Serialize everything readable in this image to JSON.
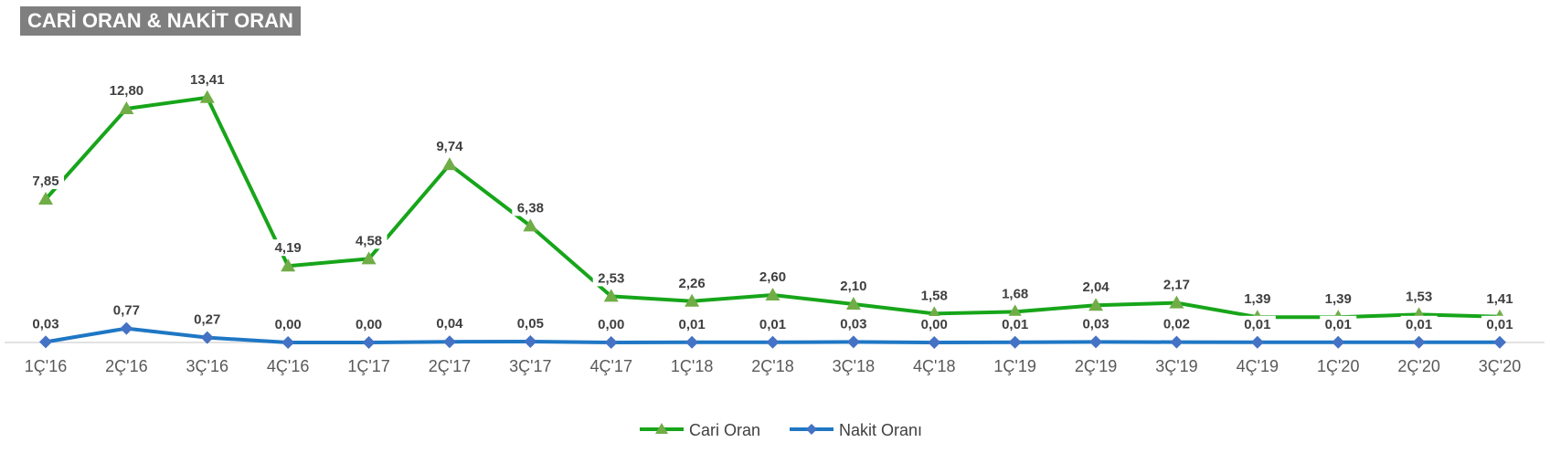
{
  "title": "CARİ ORAN & NAKİT ORAN",
  "chart_data": {
    "type": "line",
    "title": "CARİ ORAN & NAKİT ORAN",
    "categories": [
      "1Ç'16",
      "2Ç'16",
      "3Ç'16",
      "4Ç'16",
      "1Ç'17",
      "2Ç'17",
      "3Ç'17",
      "4Ç'17",
      "1Ç'18",
      "2Ç'18",
      "3Ç'18",
      "4Ç'18",
      "1Ç'19",
      "2Ç'19",
      "3Ç'19",
      "4Ç'19",
      "1Ç'20",
      "2Ç'20",
      "3Ç'20"
    ],
    "series": [
      {
        "name": "Cari Oran",
        "color": "#17a51a",
        "marker_color": "#70ad47",
        "marker": "triangle",
        "values": [
          7.85,
          12.8,
          13.41,
          4.19,
          4.58,
          9.74,
          6.38,
          2.53,
          2.26,
          2.6,
          2.1,
          1.58,
          1.68,
          2.04,
          2.17,
          1.39,
          1.39,
          1.53,
          1.41
        ],
        "labels": [
          "7,85",
          "12,80",
          "13,41",
          "4,19",
          "4,58",
          "9,74",
          "6,38",
          "2,53",
          "2,26",
          "2,60",
          "2,10",
          "1,58",
          "1,68",
          "2,04",
          "2,17",
          "1,39",
          "1,39",
          "1,53",
          "1,41"
        ]
      },
      {
        "name": "Nakit Oranı",
        "color": "#1f77c4",
        "marker_color": "#4472c4",
        "marker": "diamond",
        "values": [
          0.03,
          0.77,
          0.27,
          0.0,
          0.0,
          0.04,
          0.05,
          0.0,
          0.01,
          0.01,
          0.03,
          0.0,
          0.01,
          0.03,
          0.02,
          0.01,
          0.01,
          0.01,
          0.01
        ],
        "labels": [
          "0,03",
          "0,77",
          "0,27",
          "0,00",
          "0,00",
          "0,04",
          "0,05",
          "0,00",
          "0,01",
          "0,01",
          "0,03",
          "0,00",
          "0,01",
          "0,03",
          "0,02",
          "0,01",
          "0,01",
          "0,01",
          "0,01"
        ]
      }
    ],
    "ylim": [
      0,
      15
    ],
    "grid": false,
    "legend": "bottom-center"
  }
}
